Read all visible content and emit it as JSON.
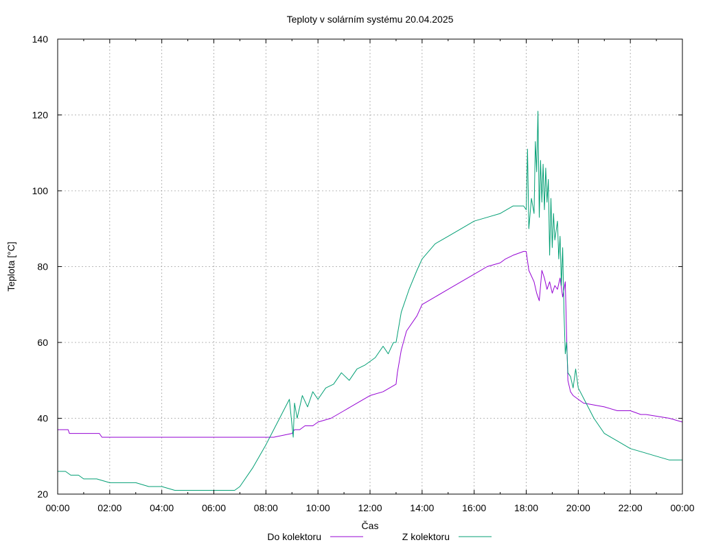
{
  "chart_data": {
    "type": "line",
    "title": "Teploty v solárním systému 20.04.2025",
    "xlabel": "Čas",
    "ylabel": "Teplota [°C]",
    "xlim": [
      0,
      24
    ],
    "ylim": [
      20,
      140
    ],
    "x_tick_labels": [
      "00:00",
      "02:00",
      "04:00",
      "06:00",
      "08:00",
      "10:00",
      "12:00",
      "14:00",
      "16:00",
      "18:00",
      "20:00",
      "22:00",
      "00:00"
    ],
    "y_tick_labels": [
      "20",
      "40",
      "60",
      "80",
      "100",
      "120",
      "140"
    ],
    "grid": true,
    "legend_position": "bottom",
    "series": [
      {
        "name": "Do kolektoru",
        "color": "#9400d3",
        "x": [
          0.0,
          0.4,
          0.45,
          1.6,
          1.7,
          1.75,
          8.3,
          9.0,
          9.1,
          9.3,
          9.5,
          9.8,
          10.0,
          10.5,
          11.0,
          11.5,
          12.0,
          12.5,
          13.0,
          13.05,
          13.2,
          13.4,
          13.8,
          14.0,
          14.5,
          15.0,
          15.5,
          16.0,
          16.5,
          17.0,
          17.2,
          17.5,
          17.9,
          18.0,
          18.1,
          18.3,
          18.4,
          18.5,
          18.6,
          18.7,
          18.8,
          18.9,
          19.0,
          19.1,
          19.2,
          19.3,
          19.4,
          19.5,
          19.55,
          19.6,
          19.7,
          19.8,
          20.0,
          20.2,
          21.0,
          21.5,
          22.0,
          22.4,
          22.5,
          22.6,
          23.5,
          24.0
        ],
        "y": [
          37,
          37,
          36,
          36,
          35,
          35,
          35,
          36,
          37,
          37,
          38,
          38,
          39,
          40,
          42,
          44,
          46,
          47,
          49,
          52,
          58,
          63,
          67,
          70,
          72,
          74,
          76,
          78,
          80,
          81,
          82,
          83,
          84,
          84,
          79,
          76,
          73,
          71,
          79,
          77,
          74,
          76,
          73,
          75,
          74,
          77,
          72,
          76,
          62,
          50,
          47,
          46,
          45,
          44,
          43,
          42,
          42,
          41,
          41,
          41,
          40,
          39
        ]
      },
      {
        "name": "Z kolektoru",
        "color": "#009e73",
        "x": [
          0.0,
          0.3,
          0.5,
          0.8,
          1.0,
          1.5,
          2.0,
          3.0,
          3.5,
          4.0,
          4.5,
          5.0,
          6.0,
          6.5,
          6.8,
          7.0,
          7.5,
          8.0,
          8.3,
          8.6,
          8.9,
          9.05,
          9.1,
          9.2,
          9.4,
          9.6,
          9.8,
          10.0,
          10.3,
          10.6,
          10.9,
          11.2,
          11.5,
          11.8,
          12.0,
          12.2,
          12.5,
          12.7,
          12.9,
          13.0,
          13.2,
          13.5,
          13.8,
          14.0,
          14.5,
          15.0,
          15.5,
          16.0,
          16.5,
          17.0,
          17.5,
          17.9,
          18.0,
          18.05,
          18.1,
          18.2,
          18.3,
          18.35,
          18.4,
          18.45,
          18.5,
          18.55,
          18.6,
          18.65,
          18.7,
          18.75,
          18.8,
          18.85,
          18.9,
          18.95,
          19.0,
          19.05,
          19.1,
          19.2,
          19.25,
          19.3,
          19.35,
          19.4,
          19.45,
          19.5,
          19.55,
          19.6,
          19.7,
          19.8,
          19.9,
          20.0,
          20.3,
          20.6,
          21.0,
          21.5,
          22.0,
          22.5,
          23.0,
          23.5,
          24.0
        ],
        "y": [
          26,
          26,
          25,
          25,
          24,
          24,
          23,
          23,
          22,
          22,
          21,
          21,
          21,
          21,
          21,
          22,
          27,
          33,
          37,
          41,
          45,
          35,
          44,
          40,
          46,
          43,
          47,
          45,
          48,
          49,
          52,
          50,
          53,
          54,
          55,
          56,
          59,
          57,
          60,
          60,
          68,
          74,
          79,
          82,
          86,
          88,
          90,
          92,
          93,
          94,
          96,
          96,
          95,
          111,
          90,
          98,
          94,
          113,
          105,
          121,
          93,
          108,
          97,
          107,
          95,
          106,
          97,
          103,
          83,
          98,
          85,
          94,
          87,
          92,
          82,
          88,
          75,
          85,
          68,
          57,
          60,
          52,
          51,
          48,
          53,
          48,
          44,
          40,
          36,
          34,
          32,
          31,
          30,
          29,
          29
        ]
      }
    ]
  }
}
